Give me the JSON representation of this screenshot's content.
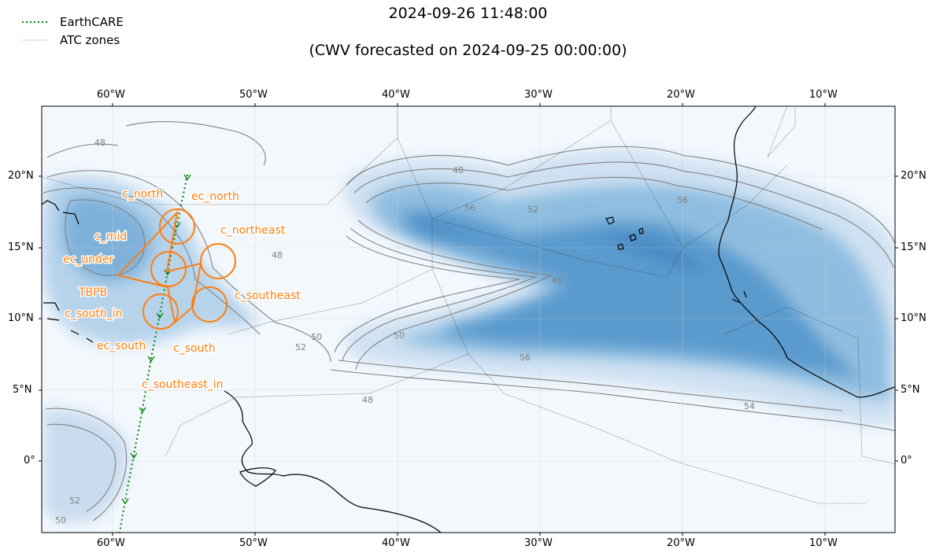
{
  "title": {
    "time": "2024-09-26 11:48:00",
    "forecast": "(CWV forecasted on 2024-09-25 00:00:00)"
  },
  "legend": [
    {
      "label": "EarthCARE",
      "color": "#008000",
      "style": "dotted"
    },
    {
      "label": "ATC zones",
      "color": "#555555",
      "style": "dotted-thin"
    }
  ],
  "axes": {
    "x_ticks": [
      "60°W",
      "50°W",
      "40°W",
      "30°W",
      "20°W",
      "10°W"
    ],
    "y_ticks": [
      "20°N",
      "15°N",
      "10°N",
      "5°N",
      "0°"
    ]
  },
  "contour_levels": [
    "48",
    "50",
    "52",
    "54",
    "56"
  ],
  "colors": {
    "earthcare": "#008000",
    "circles": "#ff7f0e",
    "contours": "#808080",
    "cwv_high": "#3a7fbf",
    "cwv_low": "#f3f8fd"
  },
  "flight_labels": [
    "c_north",
    "ec_north",
    "c_mid",
    "c_northeast",
    "ec_under",
    "TBPB",
    "c_southeast",
    "c_south_in",
    "ec_south",
    "c_south",
    "c_southeast_in"
  ]
}
